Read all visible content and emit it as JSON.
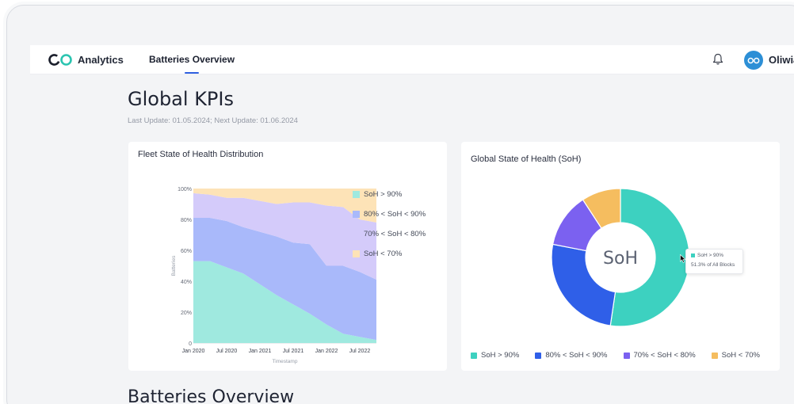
{
  "header": {
    "brand": "Analytics",
    "nav_tab": "Batteries Overview",
    "username": "Oliwia"
  },
  "page": {
    "title": "Global KPIs",
    "update": "Last Update: 01.05.2024; Next Update: 01.06.2024",
    "section2_title": "Batteries Overview"
  },
  "fleet_card": {
    "title": "Fleet State of Health Distribution"
  },
  "soh_card": {
    "title": "Global State of Health (SoH)",
    "center_label": "SoH",
    "tooltip": {
      "label": "SoH > 90%",
      "detail": "51.3% of All Blocks"
    }
  },
  "colors": {
    "teal": "#3dd1c0",
    "blue": "#2f5fe8",
    "purple": "#7b61f0",
    "orange": "#f5bd5f",
    "accent": "#2f5fe0"
  },
  "chart_data": [
    {
      "type": "area",
      "stacked": true,
      "title": "Fleet State of Health Distribution",
      "xlabel": "Timestamp",
      "ylabel": "Batteries",
      "ylim": [
        0,
        100
      ],
      "y_ticks": [
        "100%",
        "80%",
        "60%",
        "40%",
        "20%",
        "0"
      ],
      "x_ticks": [
        "Jan 2020",
        "Jul 2020",
        "Jan 2021",
        "Jul 2021",
        "Jan 2022",
        "Jul 2022"
      ],
      "x_index_of_ticks": [
        0,
        2,
        4,
        6,
        8,
        10
      ],
      "n_points": 12,
      "series": [
        {
          "name": "SoH > 90%",
          "color": "#9fe9df",
          "values": [
            53,
            53,
            49,
            45,
            38,
            31,
            25,
            19,
            12,
            6,
            4,
            2
          ]
        },
        {
          "name": "80% < SoH < 90%",
          "color": "#a9b9fa",
          "values": [
            28,
            28,
            30,
            30,
            34,
            38,
            40,
            45,
            38,
            44,
            42,
            39
          ]
        },
        {
          "name": "70% < SoH < 80%",
          "color": "#d4cbfa",
          "values": [
            16,
            15,
            15,
            19,
            20,
            21,
            26,
            27,
            39,
            38,
            34,
            37
          ]
        },
        {
          "name": "SoH < 70%",
          "color": "#fde3b7",
          "values": [
            3,
            4,
            6,
            6,
            8,
            10,
            9,
            9,
            11,
            12,
            20,
            22
          ]
        }
      ]
    },
    {
      "type": "pie",
      "donut": true,
      "title": "Global State of Health (SoH)",
      "center_label": "SoH",
      "categories": [
        "SoH > 90%",
        "80% < SoH < 90%",
        "70% < SoH < 80%",
        "SoH < 70%"
      ],
      "values": [
        51.3,
        25.2,
        12.5,
        9.0
      ],
      "colors": [
        "#3dd1c0",
        "#2f5fe8",
        "#7b61f0",
        "#f5bd5f"
      ]
    }
  ]
}
